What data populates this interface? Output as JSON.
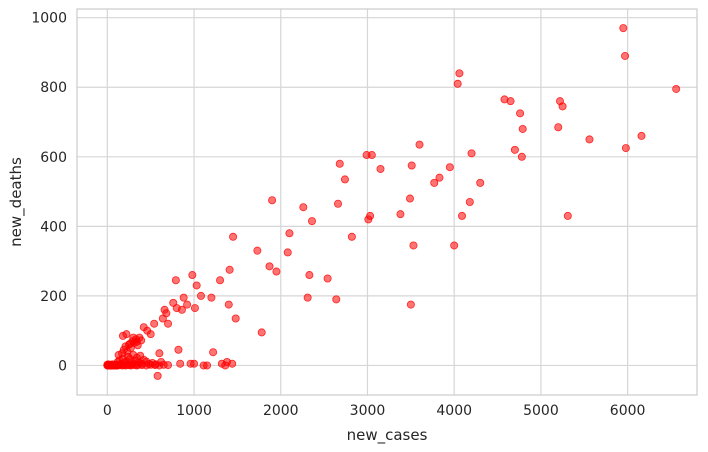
{
  "chart_data": {
    "type": "scatter",
    "title": "",
    "xlabel": "new_cases",
    "ylabel": "new_deaths",
    "xlim": [
      -350,
      6800
    ],
    "ylim": [
      -85,
      1025
    ],
    "xticks": [
      0,
      1000,
      2000,
      3000,
      4000,
      5000,
      6000
    ],
    "yticks": [
      0,
      200,
      400,
      600,
      800,
      1000
    ],
    "grid": true,
    "legend": "none",
    "point_color": "#ff0000",
    "point_opacity": 0.55,
    "points": [
      [
        0,
        0
      ],
      [
        5,
        0
      ],
      [
        10,
        0
      ],
      [
        15,
        0
      ],
      [
        20,
        0
      ],
      [
        25,
        0
      ],
      [
        30,
        0
      ],
      [
        35,
        0
      ],
      [
        40,
        0
      ],
      [
        50,
        0
      ],
      [
        60,
        0
      ],
      [
        70,
        0
      ],
      [
        80,
        0
      ],
      [
        90,
        0
      ],
      [
        100,
        0
      ],
      [
        110,
        0
      ],
      [
        120,
        0
      ],
      [
        0,
        2
      ],
      [
        10,
        3
      ],
      [
        20,
        1
      ],
      [
        40,
        2
      ],
      [
        60,
        3
      ],
      [
        80,
        1
      ],
      [
        100,
        2
      ],
      [
        130,
        1
      ],
      [
        150,
        2
      ],
      [
        170,
        0
      ],
      [
        190,
        1
      ],
      [
        210,
        0
      ],
      [
        230,
        2
      ],
      [
        250,
        1
      ],
      [
        270,
        0
      ],
      [
        290,
        2
      ],
      [
        320,
        1
      ],
      [
        340,
        0
      ],
      [
        360,
        2
      ],
      [
        400,
        1
      ],
      [
        450,
        0
      ],
      [
        500,
        2
      ],
      [
        550,
        1
      ],
      [
        600,
        0
      ],
      [
        650,
        2
      ],
      [
        700,
        1
      ],
      [
        120,
        10
      ],
      [
        140,
        15
      ],
      [
        160,
        5
      ],
      [
        180,
        20
      ],
      [
        200,
        8
      ],
      [
        220,
        12
      ],
      [
        240,
        25
      ],
      [
        260,
        18
      ],
      [
        280,
        6
      ],
      [
        300,
        30
      ],
      [
        320,
        14
      ],
      [
        340,
        22
      ],
      [
        360,
        9
      ],
      [
        380,
        28
      ],
      [
        400,
        5
      ],
      [
        420,
        16
      ],
      [
        450,
        11
      ],
      [
        480,
        4
      ],
      [
        520,
        7
      ],
      [
        560,
        3
      ],
      [
        130,
        30
      ],
      [
        170,
        35
      ],
      [
        190,
        45
      ],
      [
        210,
        55
      ],
      [
        230,
        40
      ],
      [
        250,
        60
      ],
      [
        270,
        50
      ],
      [
        290,
        70
      ],
      [
        310,
        65
      ],
      [
        330,
        75
      ],
      [
        350,
        58
      ],
      [
        370,
        80
      ],
      [
        390,
        72
      ],
      [
        180,
        85
      ],
      [
        220,
        90
      ],
      [
        260,
        62
      ],
      [
        300,
        80
      ],
      [
        340,
        68
      ],
      [
        420,
        110
      ],
      [
        460,
        100
      ],
      [
        500,
        90
      ],
      [
        540,
        120
      ],
      [
        580,
        -30
      ],
      [
        600,
        35
      ],
      [
        620,
        10
      ],
      [
        640,
        135
      ],
      [
        660,
        160
      ],
      [
        680,
        150
      ],
      [
        700,
        120
      ],
      [
        760,
        180
      ],
      [
        790,
        245
      ],
      [
        800,
        165
      ],
      [
        820,
        45
      ],
      [
        840,
        5
      ],
      [
        860,
        160
      ],
      [
        880,
        195
      ],
      [
        920,
        175
      ],
      [
        960,
        5
      ],
      [
        980,
        260
      ],
      [
        1000,
        5
      ],
      [
        1010,
        165
      ],
      [
        1030,
        230
      ],
      [
        1080,
        200
      ],
      [
        1110,
        0
      ],
      [
        1150,
        0
      ],
      [
        1200,
        195
      ],
      [
        1220,
        38
      ],
      [
        1300,
        245
      ],
      [
        1320,
        5
      ],
      [
        1360,
        0
      ],
      [
        1380,
        10
      ],
      [
        1400,
        175
      ],
      [
        1410,
        275
      ],
      [
        1440,
        5
      ],
      [
        1450,
        370
      ],
      [
        1480,
        135
      ],
      [
        1730,
        330
      ],
      [
        1780,
        95
      ],
      [
        1870,
        285
      ],
      [
        1900,
        475
      ],
      [
        1950,
        270
      ],
      [
        2080,
        325
      ],
      [
        2100,
        380
      ],
      [
        2260,
        455
      ],
      [
        2310,
        195
      ],
      [
        2330,
        260
      ],
      [
        2360,
        415
      ],
      [
        2540,
        250
      ],
      [
        2640,
        190
      ],
      [
        2660,
        465
      ],
      [
        2680,
        580
      ],
      [
        2740,
        535
      ],
      [
        2820,
        370
      ],
      [
        2990,
        605
      ],
      [
        3010,
        420
      ],
      [
        3030,
        430
      ],
      [
        3050,
        605
      ],
      [
        3150,
        565
      ],
      [
        3380,
        435
      ],
      [
        3490,
        480
      ],
      [
        3500,
        175
      ],
      [
        3510,
        575
      ],
      [
        3530,
        345
      ],
      [
        3600,
        635
      ],
      [
        3770,
        525
      ],
      [
        3830,
        540
      ],
      [
        3950,
        570
      ],
      [
        4000,
        345
      ],
      [
        4040,
        810
      ],
      [
        4060,
        840
      ],
      [
        4090,
        430
      ],
      [
        4180,
        470
      ],
      [
        4200,
        610
      ],
      [
        4300,
        525
      ],
      [
        4580,
        765
      ],
      [
        4650,
        760
      ],
      [
        4700,
        620
      ],
      [
        4760,
        725
      ],
      [
        4780,
        600
      ],
      [
        4790,
        680
      ],
      [
        5200,
        685
      ],
      [
        5220,
        760
      ],
      [
        5250,
        745
      ],
      [
        5310,
        430
      ],
      [
        5560,
        650
      ],
      [
        5950,
        970
      ],
      [
        5970,
        890
      ],
      [
        5980,
        625
      ],
      [
        6160,
        660
      ],
      [
        6560,
        795
      ]
    ]
  }
}
